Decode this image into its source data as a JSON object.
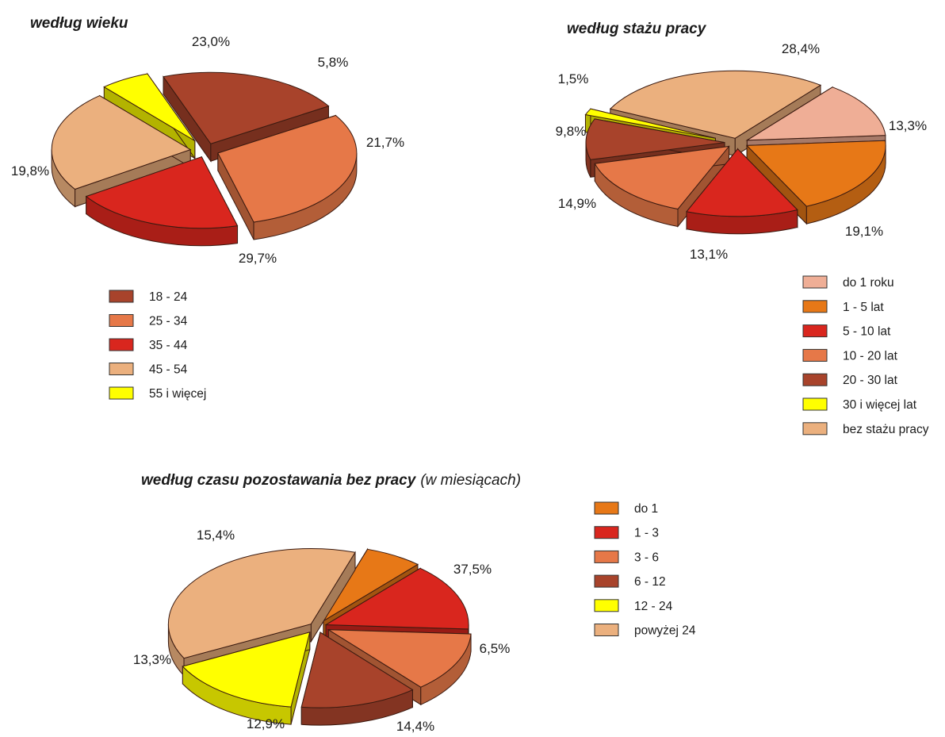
{
  "chart_data": [
    {
      "type": "pie",
      "title": "według wieku",
      "subtitle": "",
      "slices": [
        {
          "label": "18 - 24",
          "value": 21.7,
          "value_label": "21,7%",
          "color": "#A8432B"
        },
        {
          "label": "25 - 34",
          "value": 29.7,
          "value_label": "29,7%",
          "color": "#E67848"
        },
        {
          "label": "35 - 44",
          "value": 19.8,
          "value_label": "19,8%",
          "color": "#D9261E"
        },
        {
          "label": "45 - 54",
          "value": 23.0,
          "value_label": "23,0%",
          "color": "#EBB07E"
        },
        {
          "label": "55 i więcej",
          "value": 5.8,
          "value_label": "5,8%",
          "color": "#FFFF00"
        }
      ],
      "legend": [
        "18 - 24",
        "25 - 34",
        "35 - 44",
        "45 - 54",
        "55 i więcej"
      ]
    },
    {
      "type": "pie",
      "title": "według stażu pracy",
      "subtitle": "",
      "slices": [
        {
          "label": "do 1 roku",
          "value": 13.3,
          "value_label": "13,3%",
          "color": "#EFAE96"
        },
        {
          "label": "1 - 5 lat",
          "value": 19.1,
          "value_label": "19,1%",
          "color": "#E77817"
        },
        {
          "label": "5 - 10 lat",
          "value": 13.1,
          "value_label": "13,1%",
          "color": "#D9261E"
        },
        {
          "label": "10 - 20 lat",
          "value": 14.9,
          "value_label": "14,9%",
          "color": "#E67848"
        },
        {
          "label": "20 - 30 lat",
          "value": 9.8,
          "value_label": "9,8%",
          "color": "#A8432B"
        },
        {
          "label": "30 i więcej lat",
          "value": 1.5,
          "value_label": "1,5%",
          "color": "#FFFF00"
        },
        {
          "label": "bez stażu pracy",
          "value": 28.4,
          "value_label": "28,4%",
          "color": "#EBB07E"
        }
      ],
      "legend": [
        "do 1 roku",
        "1 - 5 lat",
        "5 - 10 lat",
        "10 - 20 lat",
        "20 - 30 lat",
        "30 i więcej lat",
        "bez stażu pracy"
      ]
    },
    {
      "type": "pie",
      "title": "według czasu pozostawania bez pracy",
      "subtitle": "(w miesiącach)",
      "slices": [
        {
          "label": "do 1",
          "value": 6.5,
          "value_label": "6,5%",
          "color": "#E77817"
        },
        {
          "label": "1 - 3",
          "value": 14.4,
          "value_label": "14,4%",
          "color": "#D9261E"
        },
        {
          "label": "3 - 6",
          "value": 12.9,
          "value_label": "12,9%",
          "color": "#E67848"
        },
        {
          "label": "6 - 12",
          "value": 13.3,
          "value_label": "13,3%",
          "color": "#A8432B"
        },
        {
          "label": "12 - 24",
          "value": 15.4,
          "value_label": "15,4%",
          "color": "#FFFF00"
        },
        {
          "label": "powyżej 24",
          "value": 37.5,
          "value_label": "37,5%",
          "color": "#EBB07E"
        }
      ],
      "legend": [
        "do 1",
        "1 - 3",
        "3 - 6",
        "6 - 12",
        "12 - 24",
        "powyżej 24"
      ]
    }
  ]
}
